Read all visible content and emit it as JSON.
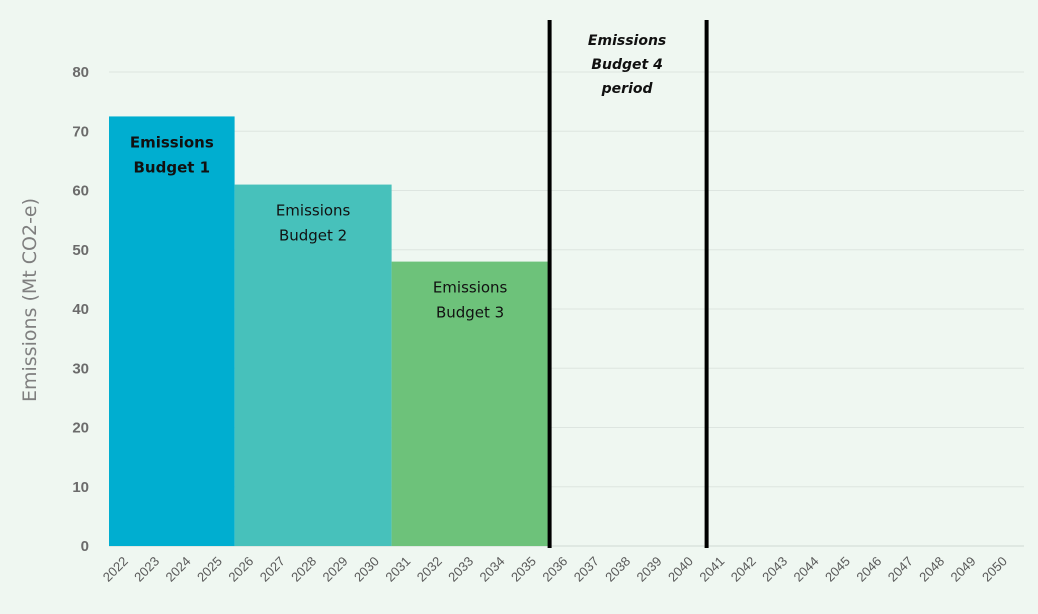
{
  "chart_data": {
    "type": "bar",
    "ylabel": "Emissions (Mt CO2-e)",
    "xlabel": "",
    "ylim": [
      0,
      80
    ],
    "yticks": [
      0,
      10,
      20,
      30,
      40,
      50,
      60,
      70,
      80
    ],
    "grid": true,
    "x_categories": [
      "2022",
      "2023",
      "2024",
      "2025",
      "2026",
      "2027",
      "2028",
      "2029",
      "2030",
      "2031",
      "2032",
      "2033",
      "2034",
      "2035",
      "2036",
      "2037",
      "2038",
      "2039",
      "2040",
      "2041",
      "2042",
      "2043",
      "2044",
      "2045",
      "2046",
      "2047",
      "2048",
      "2049",
      "2050"
    ],
    "bars": [
      {
        "label_lines": [
          "Emissions",
          "Budget 1"
        ],
        "label_bold": true,
        "start": "2022",
        "end": "2025",
        "value": 72.5,
        "color": "#00aed0"
      },
      {
        "label_lines": [
          "Emissions",
          "Budget 2"
        ],
        "label_bold": false,
        "start": "2026",
        "end": "2030",
        "value": 61,
        "color": "#47c1bb"
      },
      {
        "label_lines": [
          "Emissions",
          "Budget 3"
        ],
        "label_bold": false,
        "start": "2031",
        "end": "2035",
        "value": 48,
        "color": "#6dc27a"
      }
    ],
    "period_markers": [
      "2036",
      "2041"
    ],
    "annotation": {
      "lines": [
        "Emissions",
        "Budget 4",
        "period"
      ],
      "between": [
        "2036",
        "2041"
      ]
    }
  }
}
